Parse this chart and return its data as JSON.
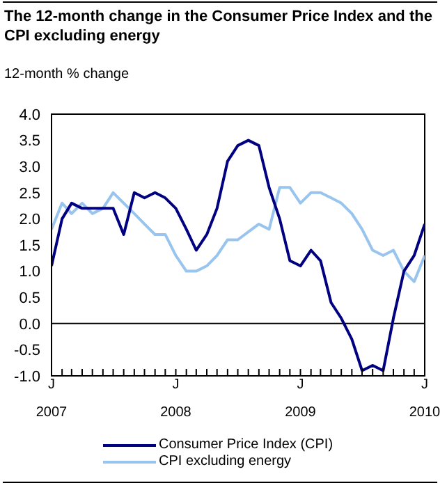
{
  "chart_data": {
    "type": "line",
    "title": "The 12-month change in the Consumer Price Index and the CPI excluding energy",
    "ylabel": "12-month % change",
    "x": [
      "2007-01",
      "2007-02",
      "2007-03",
      "2007-04",
      "2007-05",
      "2007-06",
      "2007-07",
      "2007-08",
      "2007-09",
      "2007-10",
      "2007-11",
      "2007-12",
      "2008-01",
      "2008-02",
      "2008-03",
      "2008-04",
      "2008-05",
      "2008-06",
      "2008-07",
      "2008-08",
      "2008-09",
      "2008-10",
      "2008-11",
      "2008-12",
      "2009-01",
      "2009-02",
      "2009-03",
      "2009-04",
      "2009-05",
      "2009-06",
      "2009-07",
      "2009-08",
      "2009-09",
      "2009-10",
      "2009-11",
      "2009-12",
      "2010-01"
    ],
    "series": [
      {
        "name": "Consumer Price Index (CPI)",
        "color": "#000080",
        "values": [
          1.1,
          2.0,
          2.3,
          2.2,
          2.2,
          2.2,
          2.2,
          1.7,
          2.5,
          2.4,
          2.5,
          2.4,
          2.2,
          1.8,
          1.4,
          1.7,
          2.2,
          3.1,
          3.4,
          3.5,
          3.4,
          2.6,
          2.0,
          1.2,
          1.1,
          1.4,
          1.2,
          0.4,
          0.1,
          -0.3,
          -0.9,
          -0.8,
          -0.9,
          0.1,
          1.0,
          1.3,
          1.9
        ]
      },
      {
        "name": "CPI excluding energy",
        "color": "#99c4ee",
        "values": [
          1.8,
          2.3,
          2.1,
          2.3,
          2.1,
          2.2,
          2.5,
          2.3,
          2.1,
          1.9,
          1.7,
          1.7,
          1.3,
          1.0,
          1.0,
          1.1,
          1.3,
          1.6,
          1.6,
          1.75,
          1.9,
          1.8,
          2.6,
          2.6,
          2.3,
          2.5,
          2.5,
          2.4,
          2.3,
          2.1,
          1.8,
          1.4,
          1.3,
          1.4,
          1.0,
          0.8,
          1.3
        ]
      }
    ],
    "xlim": [
      "2007-01",
      "2010-01"
    ],
    "xticks": [
      {
        "value": "2007-01",
        "label": "J\n2007"
      },
      {
        "value": "2007-02",
        "label": null
      },
      {
        "value": "2007-03",
        "label": null
      },
      {
        "value": "2007-04",
        "label": null
      },
      {
        "value": "2007-05",
        "label": null
      },
      {
        "value": "2007-06",
        "label": null
      },
      {
        "value": "2007-07",
        "label": null
      },
      {
        "value": "2007-08",
        "label": null
      },
      {
        "value": "2007-09",
        "label": null
      },
      {
        "value": "2007-10",
        "label": null
      },
      {
        "value": "2007-11",
        "label": null
      },
      {
        "value": "2007-12",
        "label": null
      },
      {
        "value": "2008-01",
        "label": "J\n2008"
      },
      {
        "value": "2008-02",
        "label": null
      },
      {
        "value": "2008-03",
        "label": null
      },
      {
        "value": "2008-04",
        "label": null
      },
      {
        "value": "2008-05",
        "label": null
      },
      {
        "value": "2008-06",
        "label": null
      },
      {
        "value": "2008-07",
        "label": null
      },
      {
        "value": "2008-08",
        "label": null
      },
      {
        "value": "2008-09",
        "label": null
      },
      {
        "value": "2008-10",
        "label": null
      },
      {
        "value": "2008-11",
        "label": null
      },
      {
        "value": "2008-12",
        "label": null
      },
      {
        "value": "2009-01",
        "label": "J\n2009"
      },
      {
        "value": "2009-02",
        "label": null
      },
      {
        "value": "2009-03",
        "label": null
      },
      {
        "value": "2009-04",
        "label": null
      },
      {
        "value": "2009-05",
        "label": null
      },
      {
        "value": "2009-06",
        "label": null
      },
      {
        "value": "2009-07",
        "label": null
      },
      {
        "value": "2009-08",
        "label": null
      },
      {
        "value": "2009-09",
        "label": null
      },
      {
        "value": "2009-10",
        "label": null
      },
      {
        "value": "2009-11",
        "label": null
      },
      {
        "value": "2009-12",
        "label": null
      },
      {
        "value": "2010-01",
        "label": "J\n2010"
      }
    ],
    "ylim": [
      -1,
      4
    ],
    "yticks": [
      {
        "value": -1,
        "label": "-1.0"
      },
      {
        "value": -0.5,
        "label": "-0.5"
      },
      {
        "value": 0,
        "label": "0.0"
      },
      {
        "value": 0.5,
        "label": "0.5"
      },
      {
        "value": 1,
        "label": "1.0"
      },
      {
        "value": 1.5,
        "label": "1.5"
      },
      {
        "value": 2,
        "label": "2.0"
      },
      {
        "value": 2.5,
        "label": "2.5"
      },
      {
        "value": 3,
        "label": "3.0"
      },
      {
        "value": 3.5,
        "label": "3.5"
      },
      {
        "value": 4,
        "label": "4.0"
      }
    ],
    "ref_lines": [
      {
        "axis": "y",
        "value": 0,
        "color": "#000000"
      }
    ],
    "grid": false,
    "legend": "bottom",
    "marker": "none",
    "line_style": "solid"
  }
}
